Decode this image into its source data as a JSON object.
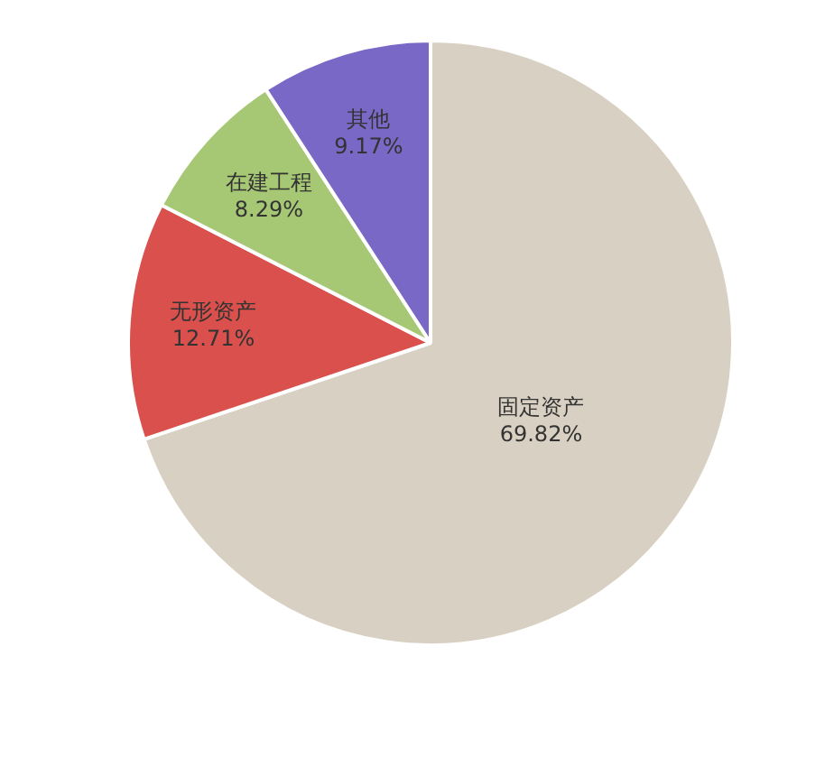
{
  "chart_data": {
    "type": "pie",
    "categories": [
      "固定资产",
      "无形资产",
      "在建工程",
      "其他"
    ],
    "values": [
      69.82,
      12.71,
      8.29,
      9.17
    ],
    "colors": [
      "#d8d0c2",
      "#d9504c",
      "#a6c875",
      "#7a68c6"
    ],
    "value_labels": [
      "69.82%",
      "12.71%",
      "8.29%",
      "9.17%"
    ],
    "legend": false
  }
}
